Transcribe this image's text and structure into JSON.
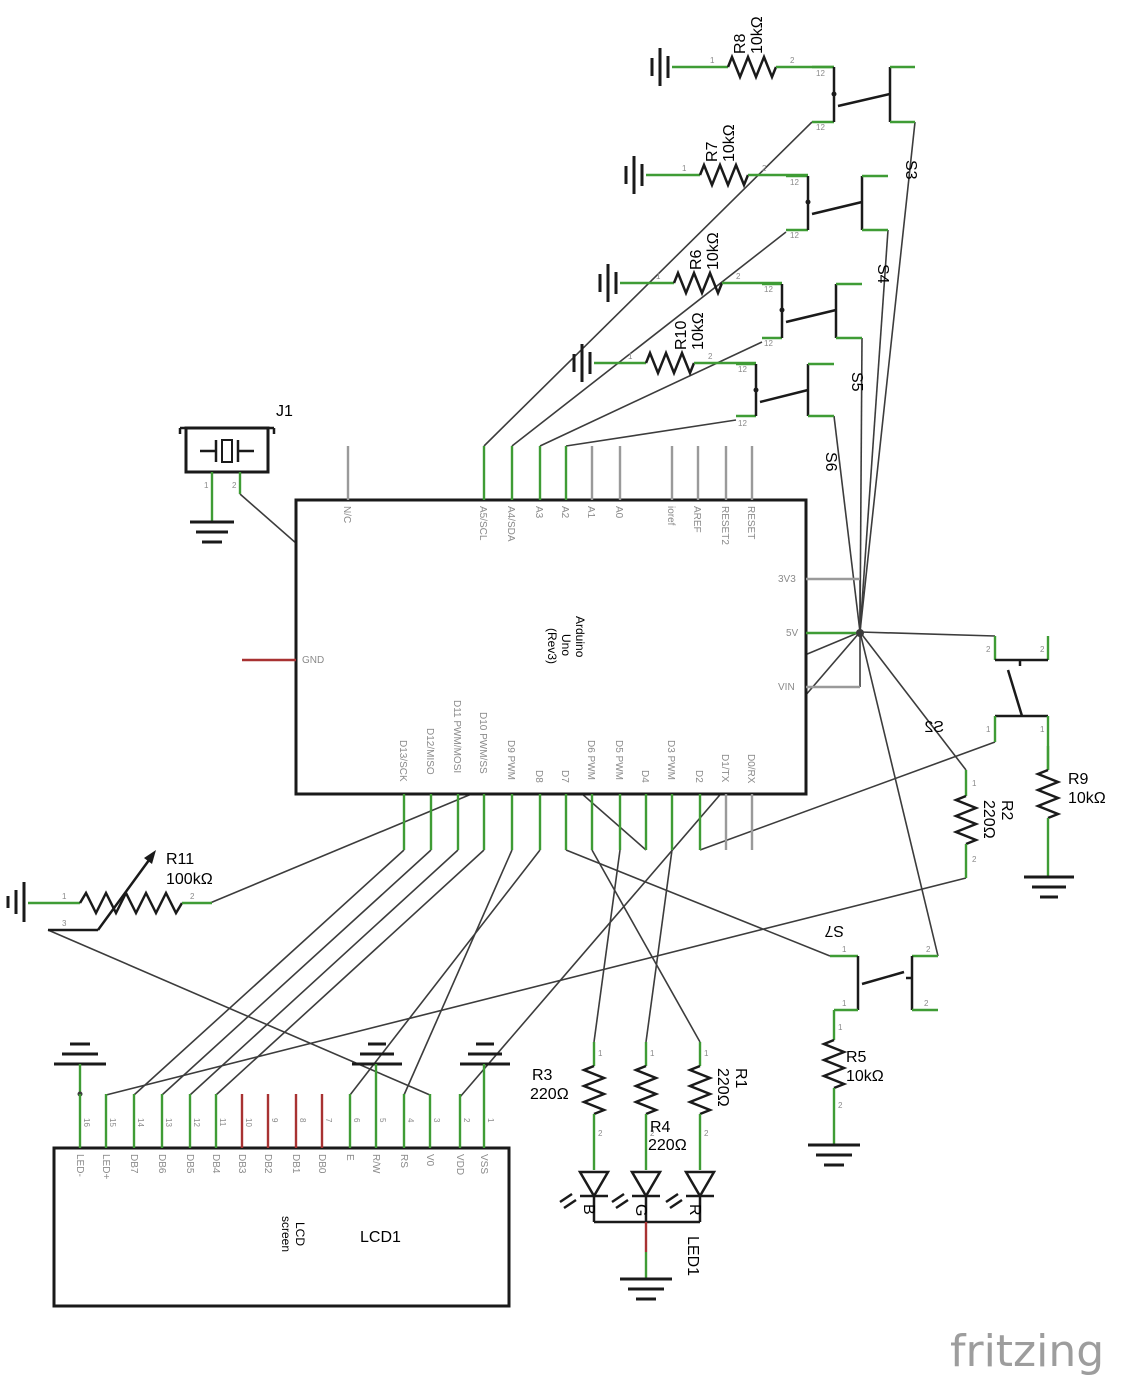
{
  "arduino": {
    "title": [
      "Arduino",
      "Uno",
      "(Rev3)"
    ],
    "top_pins": [
      "N/C",
      "A5/SCL",
      "A4/SDA",
      "A3",
      "A2",
      "A1",
      "A0",
      "ioref",
      "AREF",
      "RESET2",
      "RESET"
    ],
    "bottom_pins": [
      "D13/SCK",
      "D12/MISO",
      "D11 PWM/MOSI",
      "D10 PWM/SS",
      "D9 PWM",
      "D8",
      "D7",
      "D6 PWM",
      "D5 PWM",
      "D4",
      "D3 PWM",
      "D2",
      "D1/TX",
      "D0/RX"
    ],
    "right_pins": [
      "3V3",
      "5V",
      "VIN"
    ],
    "left_pins": [
      "GND"
    ]
  },
  "lcd": {
    "ref": "LCD1",
    "title": [
      "LCD",
      "screen"
    ],
    "pins": [
      "LED-",
      "LED+",
      "DB7",
      "DB6",
      "DB5",
      "DB4",
      "DB3",
      "DB2",
      "DB1",
      "DB0",
      "E",
      "R/W",
      "RS",
      "V0",
      "VDD",
      "VSS"
    ],
    "pin_numbers": [
      "16",
      "15",
      "14",
      "13",
      "12",
      "11",
      "10",
      "9",
      "8",
      "7",
      "6",
      "5",
      "4",
      "3",
      "2",
      "1"
    ]
  },
  "jack": {
    "ref": "J1",
    "pin_numbers": [
      "1",
      "2"
    ]
  },
  "resistors": [
    {
      "ref": "R8",
      "value": "10kΩ"
    },
    {
      "ref": "R7",
      "value": "10kΩ"
    },
    {
      "ref": "R6",
      "value": "10kΩ"
    },
    {
      "ref": "R10",
      "value": "10kΩ"
    },
    {
      "ref": "R9",
      "value": "10kΩ"
    },
    {
      "ref": "R2",
      "value": "220Ω"
    },
    {
      "ref": "R11",
      "value": "100kΩ"
    },
    {
      "ref": "R5",
      "value": "10kΩ"
    },
    {
      "ref": "R3",
      "value": "220Ω"
    },
    {
      "ref": "R4",
      "value": "220Ω"
    },
    {
      "ref": "R1",
      "value": "220Ω"
    }
  ],
  "switches": [
    "S3",
    "S4",
    "S5",
    "S6",
    "S2",
    "S7"
  ],
  "led": {
    "ref": "LED1",
    "channels": [
      "B",
      "G",
      "R"
    ]
  },
  "pin_numbers": {
    "one": "1",
    "two": "2",
    "three": "3",
    "twelve": "12"
  },
  "brand": "fritzing"
}
